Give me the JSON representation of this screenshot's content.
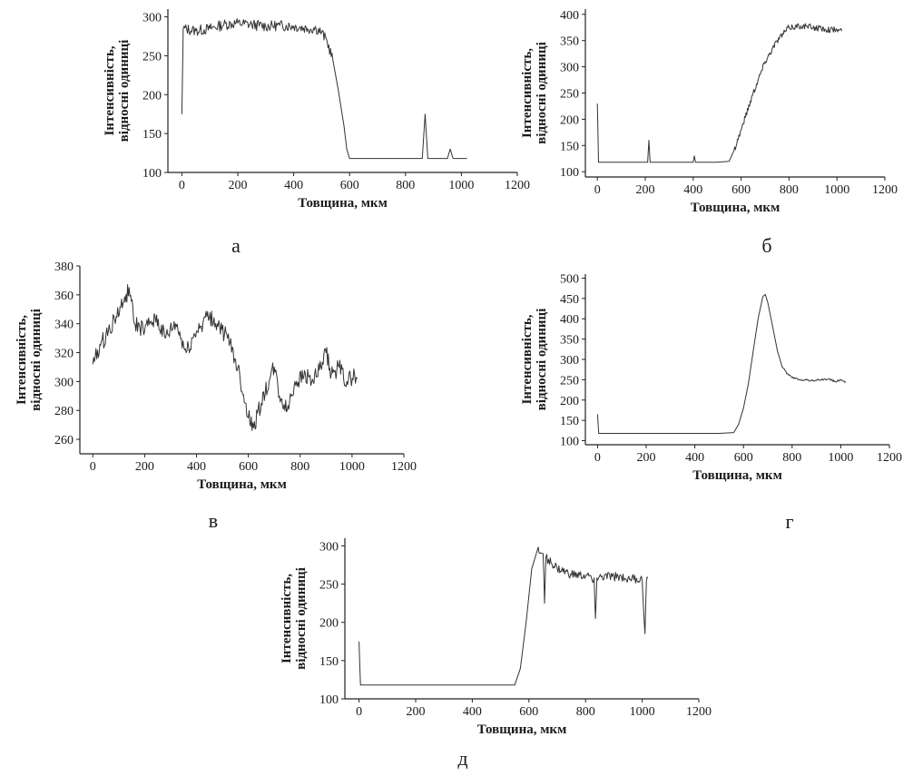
{
  "figure": {
    "panel_labels": [
      "а",
      "б",
      "в",
      "г",
      "д"
    ],
    "colors": {
      "line": "#333333",
      "axis": "#222222",
      "background": "#ffffff"
    }
  },
  "chart_data": [
    {
      "id": "a",
      "type": "line",
      "panel_label": "а",
      "title": "",
      "xlabel": "Товщина, мкм",
      "ylabel": [
        "Інтенсивність,",
        "відносні одиниці"
      ],
      "xlim": [
        -50,
        1200
      ],
      "ylim": [
        100,
        310
      ],
      "xticks": [
        0,
        200,
        400,
        600,
        800,
        1000,
        1200
      ],
      "yticks": [
        100,
        150,
        200,
        250,
        300
      ],
      "grid": false,
      "series": [
        {
          "points": [
            [
              0,
              175
            ],
            [
              5,
              285
            ],
            [
              50,
              282
            ],
            [
              100,
              285
            ],
            [
              150,
              290
            ],
            [
              200,
              292
            ],
            [
              250,
              290
            ],
            [
              300,
              288
            ],
            [
              350,
              289
            ],
            [
              400,
              288
            ],
            [
              450,
              285
            ],
            [
              480,
              285
            ],
            [
              500,
              280
            ],
            [
              520,
              268
            ],
            [
              540,
              245
            ],
            [
              560,
              205
            ],
            [
              580,
              160
            ],
            [
              590,
              130
            ],
            [
              600,
              118
            ],
            [
              650,
              118
            ],
            [
              700,
              118
            ],
            [
              800,
              118
            ],
            [
              860,
              118
            ],
            [
              870,
              175
            ],
            [
              880,
              118
            ],
            [
              950,
              118
            ],
            [
              960,
              130
            ],
            [
              970,
              118
            ],
            [
              1020,
              118
            ]
          ],
          "noise": 7,
          "noise_x": [
            5,
            540
          ]
        }
      ]
    },
    {
      "id": "b",
      "type": "line",
      "panel_label": "б",
      "title": "",
      "xlabel": "Товщина, мкм",
      "ylabel": [
        "Інтенсивність,",
        "відносні одиниці"
      ],
      "xlim": [
        -50,
        1200
      ],
      "ylim": [
        90,
        410
      ],
      "xticks": [
        0,
        200,
        400,
        600,
        800,
        1000,
        1200
      ],
      "yticks": [
        100,
        150,
        200,
        250,
        300,
        350,
        400
      ],
      "grid": false,
      "series": [
        {
          "points": [
            [
              0,
              230
            ],
            [
              5,
              118
            ],
            [
              100,
              118
            ],
            [
              210,
              118
            ],
            [
              215,
              160
            ],
            [
              220,
              118
            ],
            [
              300,
              118
            ],
            [
              400,
              118
            ],
            [
              405,
              130
            ],
            [
              410,
              118
            ],
            [
              500,
              118
            ],
            [
              550,
              120
            ],
            [
              570,
              140
            ],
            [
              600,
              180
            ],
            [
              650,
              250
            ],
            [
              700,
              310
            ],
            [
              750,
              350
            ],
            [
              800,
              375
            ],
            [
              850,
              378
            ],
            [
              900,
              375
            ],
            [
              950,
              372
            ],
            [
              1000,
              370
            ],
            [
              1020,
              368
            ]
          ],
          "noise": 6,
          "noise_x": [
            560,
            1020
          ]
        }
      ]
    },
    {
      "id": "c",
      "type": "line",
      "panel_label": "в",
      "title": "",
      "xlabel": "Товщина, мкм",
      "ylabel": [
        "Інтенсивність,",
        "відносні одиниці"
      ],
      "xlim": [
        -50,
        1200
      ],
      "ylim": [
        250,
        380
      ],
      "xticks": [
        0,
        200,
        400,
        600,
        800,
        1000,
        1200
      ],
      "yticks": [
        260,
        280,
        300,
        320,
        340,
        360,
        380
      ],
      "grid": false,
      "series": [
        {
          "points": [
            [
              0,
              312
            ],
            [
              30,
              325
            ],
            [
              60,
              335
            ],
            [
              90,
              345
            ],
            [
              120,
              355
            ],
            [
              140,
              365
            ],
            [
              160,
              340
            ],
            [
              200,
              335
            ],
            [
              240,
              345
            ],
            [
              280,
              330
            ],
            [
              320,
              340
            ],
            [
              360,
              320
            ],
            [
              400,
              335
            ],
            [
              440,
              345
            ],
            [
              480,
              340
            ],
            [
              520,
              330
            ],
            [
              560,
              310
            ],
            [
              600,
              275
            ],
            [
              620,
              268
            ],
            [
              650,
              285
            ],
            [
              680,
              300
            ],
            [
              700,
              310
            ],
            [
              720,
              290
            ],
            [
              750,
              280
            ],
            [
              780,
              300
            ],
            [
              820,
              305
            ],
            [
              850,
              300
            ],
            [
              880,
              310
            ],
            [
              900,
              320
            ],
            [
              920,
              305
            ],
            [
              950,
              310
            ],
            [
              980,
              300
            ],
            [
              1010,
              305
            ],
            [
              1020,
              302
            ]
          ],
          "noise": 6,
          "noise_x": [
            0,
            1020
          ]
        }
      ]
    },
    {
      "id": "d",
      "type": "line",
      "panel_label": "г",
      "title": "",
      "xlabel": "Товщина, мкм",
      "ylabel": [
        "Інтенсивність,",
        "відносні одиниці"
      ],
      "xlim": [
        -50,
        1200
      ],
      "ylim": [
        90,
        510
      ],
      "xticks": [
        0,
        200,
        400,
        600,
        800,
        1000,
        1200
      ],
      "yticks": [
        100,
        150,
        200,
        250,
        300,
        350,
        400,
        450,
        500
      ],
      "grid": false,
      "series": [
        {
          "points": [
            [
              0,
              165
            ],
            [
              5,
              118
            ],
            [
              100,
              118
            ],
            [
              300,
              118
            ],
            [
              500,
              118
            ],
            [
              560,
              120
            ],
            [
              580,
              140
            ],
            [
              600,
              180
            ],
            [
              620,
              240
            ],
            [
              640,
              320
            ],
            [
              660,
              400
            ],
            [
              680,
              455
            ],
            [
              690,
              460
            ],
            [
              700,
              440
            ],
            [
              720,
              380
            ],
            [
              740,
              320
            ],
            [
              760,
              280
            ],
            [
              780,
              265
            ],
            [
              800,
              255
            ],
            [
              840,
              250
            ],
            [
              880,
              248
            ],
            [
              920,
              250
            ],
            [
              950,
              252
            ],
            [
              980,
              245
            ],
            [
              1000,
              250
            ],
            [
              1020,
              245
            ]
          ],
          "noise": 2.5,
          "noise_x": [
            760,
            1020
          ]
        }
      ]
    },
    {
      "id": "e",
      "type": "line",
      "panel_label": "д",
      "title": "",
      "xlabel": "Товщина, мкм",
      "ylabel": [
        "Інтенсивність,",
        "відносні одиниці"
      ],
      "xlim": [
        -50,
        1200
      ],
      "ylim": [
        100,
        310
      ],
      "xticks": [
        0,
        200,
        400,
        600,
        800,
        1000,
        1200
      ],
      "yticks": [
        100,
        150,
        200,
        250,
        300
      ],
      "grid": false,
      "series": [
        {
          "points": [
            [
              0,
              175
            ],
            [
              5,
              118
            ],
            [
              100,
              118
            ],
            [
              300,
              118
            ],
            [
              500,
              118
            ],
            [
              550,
              118
            ],
            [
              570,
              140
            ],
            [
              590,
              200
            ],
            [
              610,
              270
            ],
            [
              630,
              295
            ],
            [
              650,
              290
            ],
            [
              655,
              225
            ],
            [
              660,
              285
            ],
            [
              700,
              270
            ],
            [
              750,
              262
            ],
            [
              800,
              260
            ],
            [
              830,
              258
            ],
            [
              835,
              205
            ],
            [
              840,
              258
            ],
            [
              900,
              260
            ],
            [
              950,
              258
            ],
            [
              1000,
              255
            ],
            [
              1010,
              185
            ],
            [
              1015,
              255
            ],
            [
              1020,
              258
            ]
          ],
          "noise": 6,
          "noise_x": [
            620,
            1020
          ]
        }
      ]
    }
  ]
}
